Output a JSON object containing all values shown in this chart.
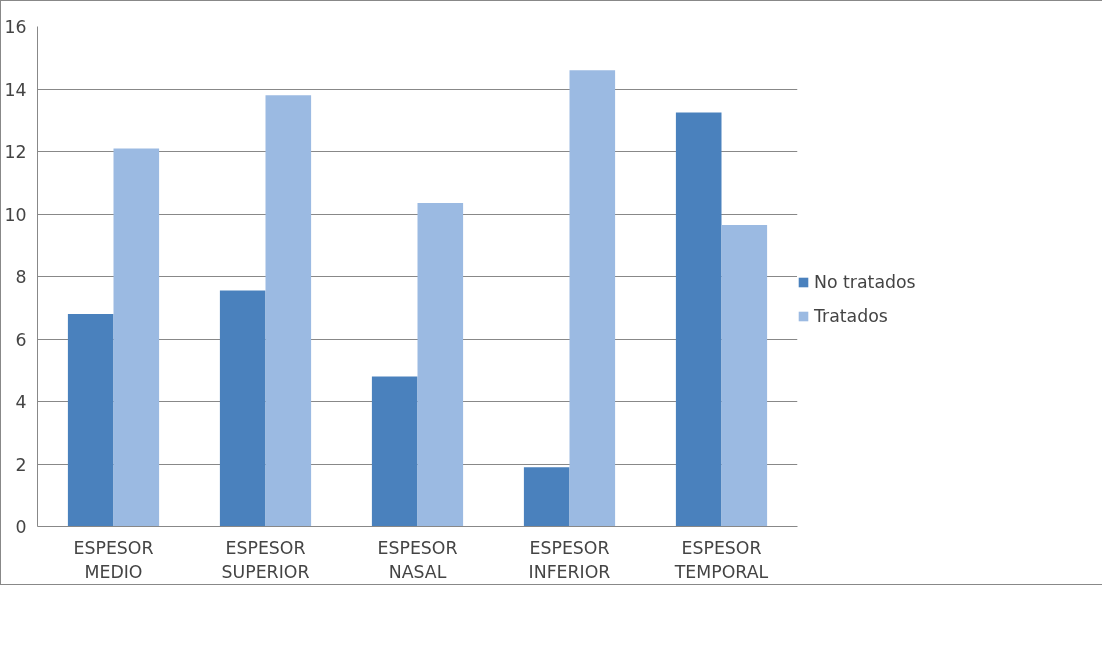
{
  "chart_data": {
    "type": "bar",
    "categories": [
      "ESPESOR MEDIO",
      "ESPESOR SUPERIOR",
      "ESPESOR NASAL",
      "ESPESOR INFERIOR",
      "ESPESOR TEMPORAL"
    ],
    "series": [
      {
        "name": "No tratados",
        "color": "#4a81bd",
        "values": [
          6.8,
          7.55,
          4.8,
          1.9,
          13.25
        ]
      },
      {
        "name": "Tratados",
        "color": "#9bbae2",
        "values": [
          12.1,
          13.8,
          10.35,
          14.6,
          9.65
        ]
      }
    ],
    "ylim": [
      0,
      16
    ],
    "yticks": [
      0,
      2,
      4,
      6,
      8,
      10,
      12,
      14,
      16
    ],
    "grid": "y",
    "legend": "right"
  }
}
